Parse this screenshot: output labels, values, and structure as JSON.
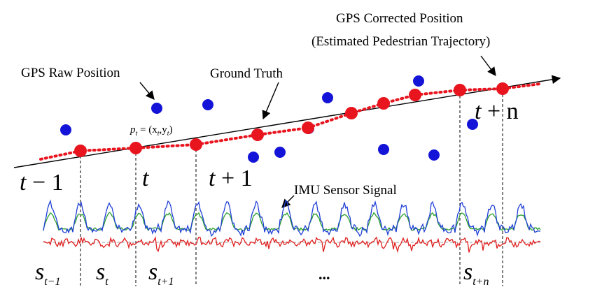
{
  "labels": {
    "gps_raw": "GPS Raw Position",
    "ground_truth": "Ground Truth",
    "gps_corrected_line1": "GPS Corrected Position",
    "gps_corrected_line2": "(Estimated Pedestrian Trajectory)",
    "imu": "IMU Sensor Signal",
    "pt_formula": "p",
    "pt_sub": "t",
    "pt_eq": " = (x",
    "pt_x_sub": "t",
    "pt_comma": ",y",
    "pt_y_sub": "t",
    "pt_close": ")",
    "ellipsis": "..."
  },
  "time_labels": [
    {
      "main": "t",
      "op": " − 1"
    },
    {
      "main": "t",
      "op": ""
    },
    {
      "main": "t",
      "op": " + 1"
    },
    {
      "main": "t",
      "op": " + n"
    }
  ],
  "segment_labels": [
    {
      "main": "s",
      "sub": "t−1"
    },
    {
      "main": "s",
      "sub": "t"
    },
    {
      "main": "s",
      "sub": "t+1"
    },
    {
      "main": "s",
      "sub": "t+n"
    }
  ],
  "colors": {
    "raw_gps": "#1414d8",
    "corrected": "#e8141e",
    "ground_truth": "#000000",
    "imu_blue": "#1f3fd6",
    "imu_green": "#2aa02a",
    "imu_red": "#e02020"
  },
  "icons": {
    "arrow_head": "arrow-head-icon"
  }
}
